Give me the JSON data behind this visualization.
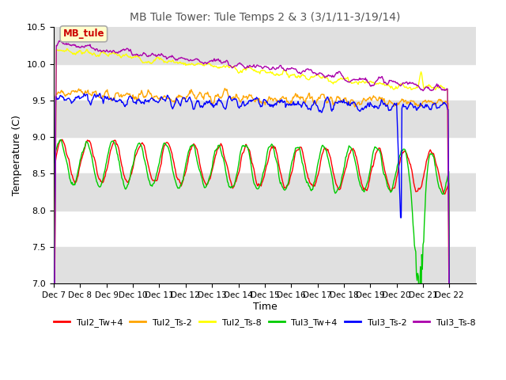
{
  "title": "MB Tule Tower: Tule Temps 2 & 3 (3/1/11-3/19/14)",
  "xlabel": "Time",
  "ylabel": "Temperature (C)",
  "ylim": [
    7.0,
    10.5
  ],
  "yticks": [
    7.0,
    7.5,
    8.0,
    8.5,
    9.0,
    9.5,
    10.0,
    10.5
  ],
  "xtick_labels": [
    "Dec 7",
    "Dec 8",
    "Dec 9",
    "Dec 10",
    "Dec 11",
    "Dec 12",
    "Dec 13",
    "Dec 14",
    "Dec 15",
    "Dec 16",
    "Dec 17",
    "Dec 18",
    "Dec 19",
    "Dec 20",
    "Dec 21",
    "Dec 22"
  ],
  "n_days": 16,
  "gray_band_color": "#e0e0e0",
  "series_colors": {
    "Tul2_Tw+4": "#ff0000",
    "Tul2_Ts-2": "#ffa500",
    "Tul2_Ts-8": "#ffff00",
    "Tul3_Tw+4": "#00cc00",
    "Tul3_Ts-2": "#0000ff",
    "Tul3_Ts-8": "#aa00aa"
  },
  "legend_label": "MB_tule",
  "n_points": 600,
  "seed": 7
}
